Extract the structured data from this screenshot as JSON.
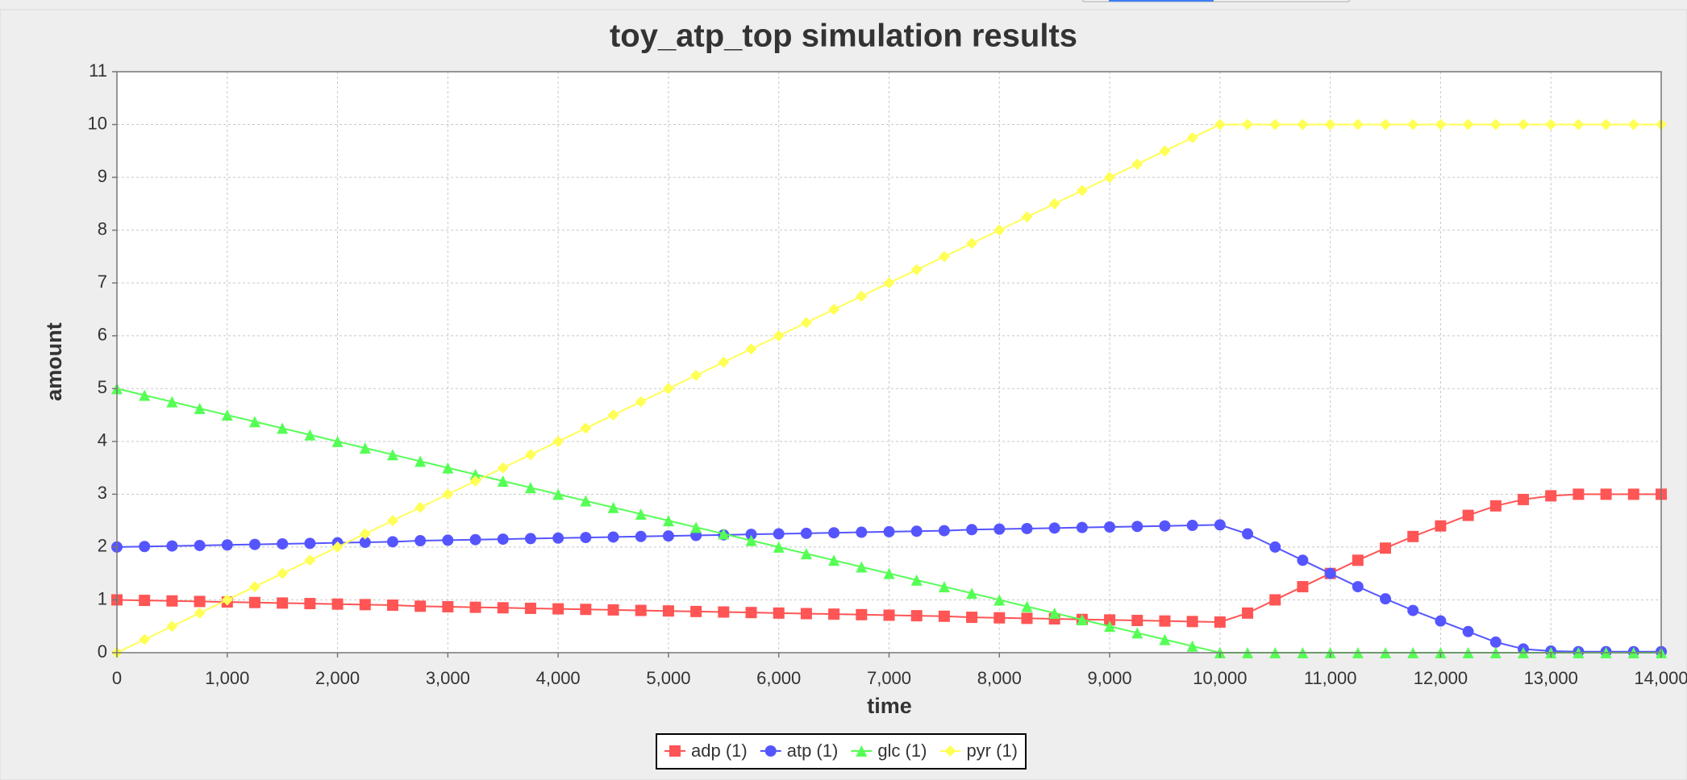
{
  "chart_data": {
    "type": "line",
    "title": "toy_atp_top simulation results",
    "x_label": "time",
    "y_label": "amount",
    "x": [
      0,
      250,
      500,
      750,
      1000,
      1250,
      1500,
      1750,
      2000,
      2250,
      2500,
      2750,
      3000,
      3250,
      3500,
      3750,
      4000,
      4250,
      4500,
      4750,
      5000,
      5250,
      5500,
      5750,
      6000,
      6250,
      6500,
      6750,
      7000,
      7250,
      7500,
      7750,
      8000,
      8250,
      8500,
      8750,
      9000,
      9250,
      9500,
      9750,
      10000,
      10250,
      10500,
      10750,
      11000,
      11250,
      11500,
      11750,
      12000,
      12250,
      12500,
      12750,
      13000,
      13250,
      13500,
      13750,
      14000
    ],
    "series": [
      {
        "name": "adp (1)",
        "color": "#ff5555",
        "marker": "square",
        "values": [
          1.0,
          0.99,
          0.98,
          0.97,
          0.96,
          0.95,
          0.94,
          0.93,
          0.92,
          0.91,
          0.9,
          0.88,
          0.87,
          0.86,
          0.85,
          0.84,
          0.83,
          0.82,
          0.81,
          0.8,
          0.79,
          0.78,
          0.77,
          0.76,
          0.75,
          0.74,
          0.73,
          0.72,
          0.71,
          0.7,
          0.69,
          0.67,
          0.66,
          0.65,
          0.64,
          0.63,
          0.62,
          0.61,
          0.6,
          0.59,
          0.58,
          0.75,
          1.0,
          1.25,
          1.5,
          1.75,
          1.98,
          2.2,
          2.4,
          2.6,
          2.78,
          2.9,
          2.97,
          3,
          3,
          3,
          3
        ]
      },
      {
        "name": "atp (1)",
        "color": "#5555ff",
        "marker": "circle",
        "values": [
          2.0,
          2.01,
          2.02,
          2.03,
          2.04,
          2.05,
          2.06,
          2.07,
          2.08,
          2.09,
          2.1,
          2.12,
          2.13,
          2.14,
          2.15,
          2.16,
          2.17,
          2.18,
          2.19,
          2.2,
          2.21,
          2.22,
          2.23,
          2.24,
          2.25,
          2.26,
          2.27,
          2.28,
          2.29,
          2.3,
          2.31,
          2.33,
          2.34,
          2.35,
          2.36,
          2.37,
          2.38,
          2.39,
          2.4,
          2.41,
          2.42,
          2.25,
          2.0,
          1.75,
          1.5,
          1.25,
          1.02,
          0.8,
          0.6,
          0.4,
          0.2,
          0.07,
          0.03,
          0.02,
          0.02,
          0.02,
          0.02
        ]
      },
      {
        "name": "glc (1)",
        "color": "#55ff55",
        "marker": "triangle",
        "values": [
          5,
          4.875,
          4.75,
          4.625,
          4.5,
          4.375,
          4.25,
          4.125,
          4,
          3.875,
          3.75,
          3.625,
          3.5,
          3.375,
          3.25,
          3.125,
          3,
          2.875,
          2.75,
          2.625,
          2.5,
          2.375,
          2.25,
          2.125,
          2,
          1.875,
          1.75,
          1.625,
          1.5,
          1.375,
          1.25,
          1.125,
          1,
          0.875,
          0.75,
          0.625,
          0.5,
          0.375,
          0.25,
          0.125,
          0,
          0,
          0,
          0,
          0,
          0,
          0,
          0,
          0,
          0,
          0,
          0,
          0,
          0,
          0,
          0,
          0
        ]
      },
      {
        "name": "pyr (1)",
        "color": "#ffff55",
        "marker": "diamond",
        "values": [
          0,
          0.25,
          0.5,
          0.75,
          1,
          1.25,
          1.5,
          1.75,
          2,
          2.25,
          2.5,
          2.75,
          3,
          3.25,
          3.5,
          3.75,
          4,
          4.25,
          4.5,
          4.75,
          5,
          5.25,
          5.5,
          5.75,
          6,
          6.25,
          6.5,
          6.75,
          7,
          7.25,
          7.5,
          7.75,
          8,
          8.25,
          8.5,
          8.75,
          9,
          9.25,
          9.5,
          9.75,
          10,
          10,
          10,
          10,
          10,
          10,
          10,
          10,
          10,
          10,
          10,
          10,
          10,
          10,
          10,
          10,
          10
        ]
      }
    ],
    "xlim": [
      0,
      14000
    ],
    "xticks": [
      0,
      {
        "value": 1000,
        "label": "1,000"
      },
      {
        "value": 2000,
        "label": "2,000"
      },
      {
        "value": 3000,
        "label": "3,000"
      },
      {
        "value": 4000,
        "label": "4,000"
      },
      {
        "value": 5000,
        "label": "5,000"
      },
      {
        "value": 6000,
        "label": "6,000"
      },
      {
        "value": 7000,
        "label": "7,000"
      },
      {
        "value": 8000,
        "label": "8,000"
      },
      {
        "value": 9000,
        "label": "9,000"
      },
      {
        "value": 10000,
        "label": "10,000"
      },
      {
        "value": 11000,
        "label": "11,000"
      },
      {
        "value": 12000,
        "label": "12,000"
      },
      {
        "value": 13000,
        "label": "13,000"
      },
      {
        "value": 14000,
        "label": "14,000"
      }
    ],
    "ylim": [
      0,
      11
    ],
    "yticks": [
      0,
      1,
      2,
      3,
      4,
      5,
      6,
      7,
      8,
      9,
      10,
      11
    ],
    "grid": true,
    "legend": "bottom"
  }
}
